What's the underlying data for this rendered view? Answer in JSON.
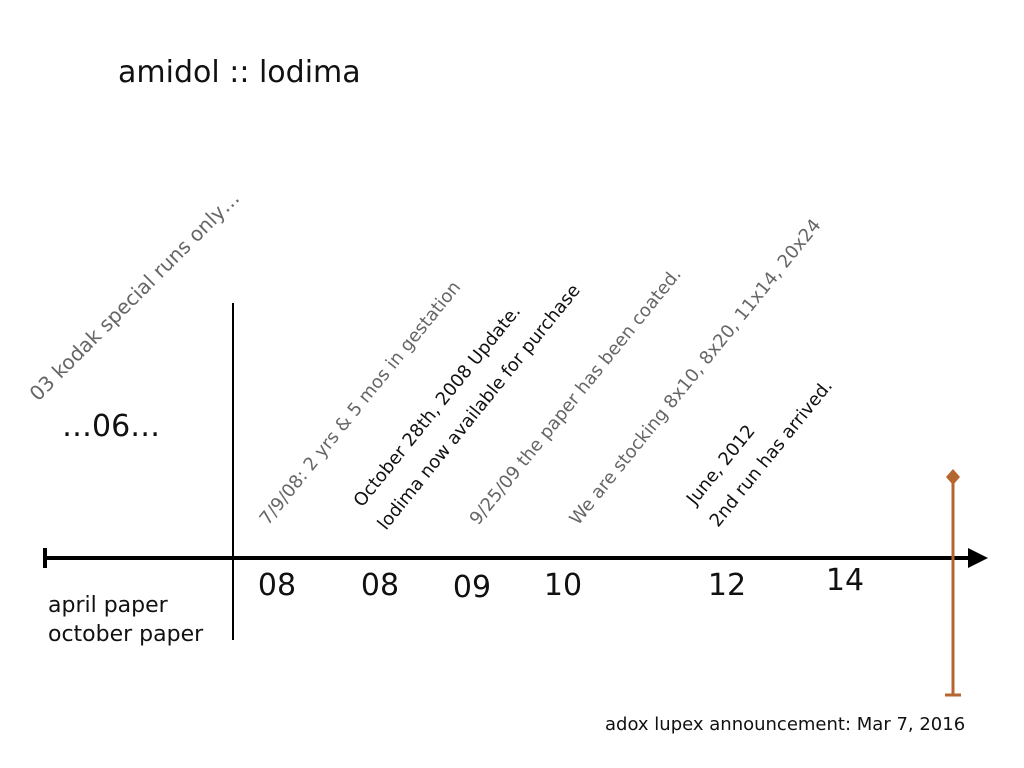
{
  "title": "amidol :: lodima",
  "pre_label": "03 kodak special runs only…",
  "gap_label": "…06…",
  "paper_labels": [
    "april paper",
    "october paper"
  ],
  "years": [
    "08",
    "08",
    "09",
    "10",
    "12",
    "14"
  ],
  "events": [
    {
      "lines": [
        "7/9/08: 2 yrs & 5 mos in gestation"
      ]
    },
    {
      "lines": [
        "October 28th, 2008 Update.",
        "lodima now available for purchase"
      ]
    },
    {
      "lines": [
        "9/25/09 the paper has been coated."
      ]
    },
    {
      "lines": [
        "We are stocking 8x10, 8x20, 11x14, 20x24"
      ]
    },
    {
      "lines": [
        "June, 2012",
        "2nd run has arrived."
      ]
    }
  ],
  "marker_label": "adox lupex announcement: Mar 7, 2016"
}
